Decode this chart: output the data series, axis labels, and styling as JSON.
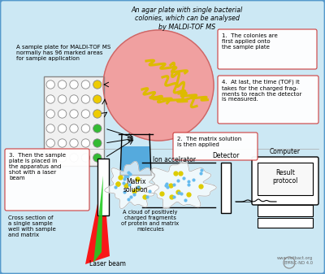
{
  "bg_color": "#cce8f4",
  "border_color": "#5599cc",
  "title": "An agar plate with single bacterial\ncolonies, which can be analysed\nby MALDI-TOF MS",
  "watermark1": "www.vetbact.org",
  "watermark2": "BY-NC-ND 4.0",
  "label_sample_plate": "A sample plate for MALDI-TOF MS\nnormally has 96 marked areas\nfor sample application",
  "label_matrix": "Matrix\nsolution",
  "label_laser": "Laser beam",
  "label_cross": "Cross section of\na single sample\nwell with sample\nand matrix",
  "label_ion": "Ion accelrator",
  "label_cloud": "A cloud of positively\ncharged fragments\nof protein and matrix\nmolecules",
  "label_detector": "Detector",
  "label_computer": "Computer",
  "label_result": "Result\nprotocol",
  "box1_text": "1.  The colonies are\nfirst applied onto\nthe sample plate",
  "box2_text": "2.  The matrix solution\nis then applied",
  "box3_text": "3.  Then the sample\nplate is placed in\nthe apparatus and\nshot with a laser\nbeam",
  "box4_text": "4.  At last, the time (TOF) it\ntakes for the charged frag-\nments to reach the detector\nis measured."
}
